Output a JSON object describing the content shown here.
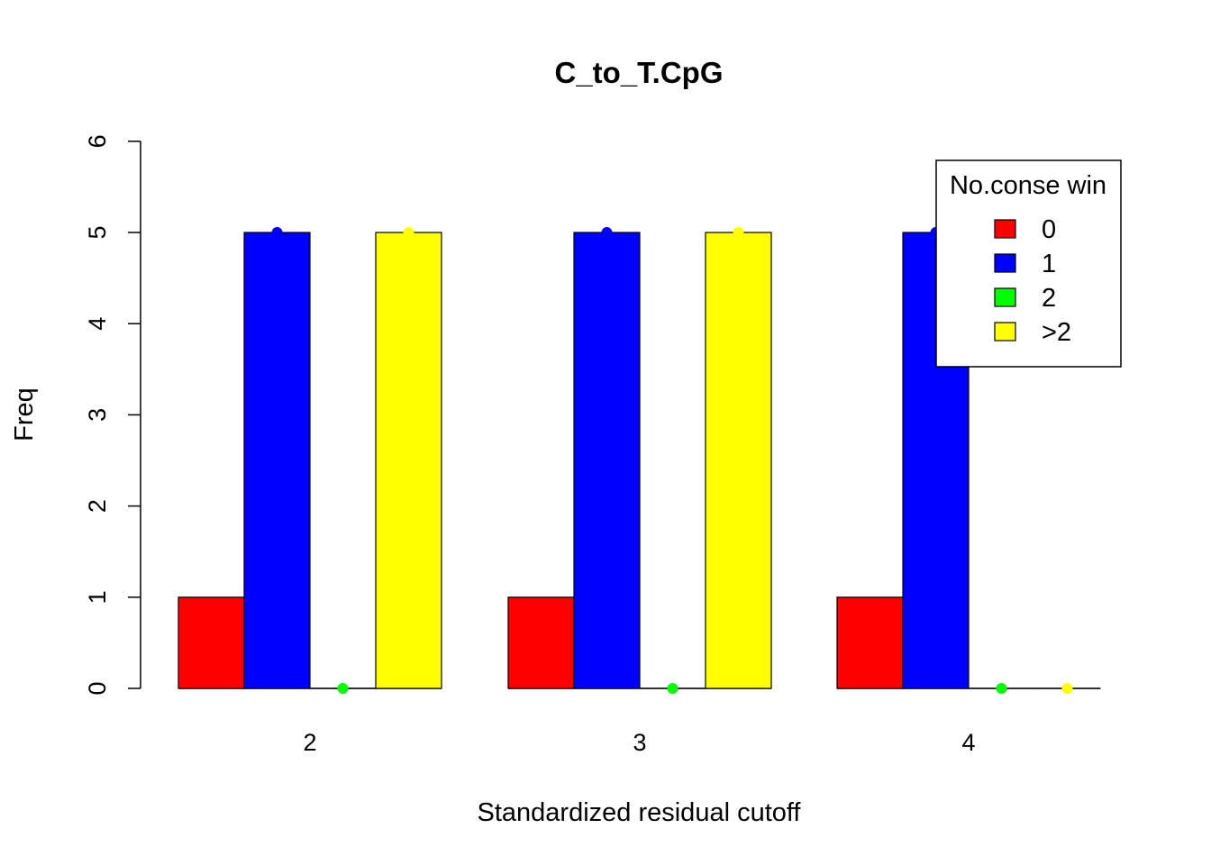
{
  "chart_data": {
    "type": "bar",
    "title": "C_to_T.CpG",
    "xlabel": "Standardized residual cutoff",
    "ylabel": "Freq",
    "categories": [
      "2",
      "3",
      "4"
    ],
    "ylim": [
      0,
      6
    ],
    "yticks": [
      "0",
      "1",
      "2",
      "3",
      "4",
      "5",
      "6"
    ],
    "series": [
      {
        "name": "0",
        "color": "#ff0000",
        "values": [
          1,
          1,
          1
        ]
      },
      {
        "name": "1",
        "color": "#0000ff",
        "values": [
          5,
          5,
          5
        ]
      },
      {
        "name": "2",
        "color": "#00ff00",
        "values": [
          0,
          0,
          0
        ]
      },
      {
        "name": ">2",
        "color": "#ffff00",
        "values": [
          5,
          5,
          0
        ]
      }
    ],
    "legend": {
      "title": "No.conse win",
      "position": "top-right",
      "entries": [
        "0",
        "1",
        "2",
        ">2"
      ]
    }
  }
}
